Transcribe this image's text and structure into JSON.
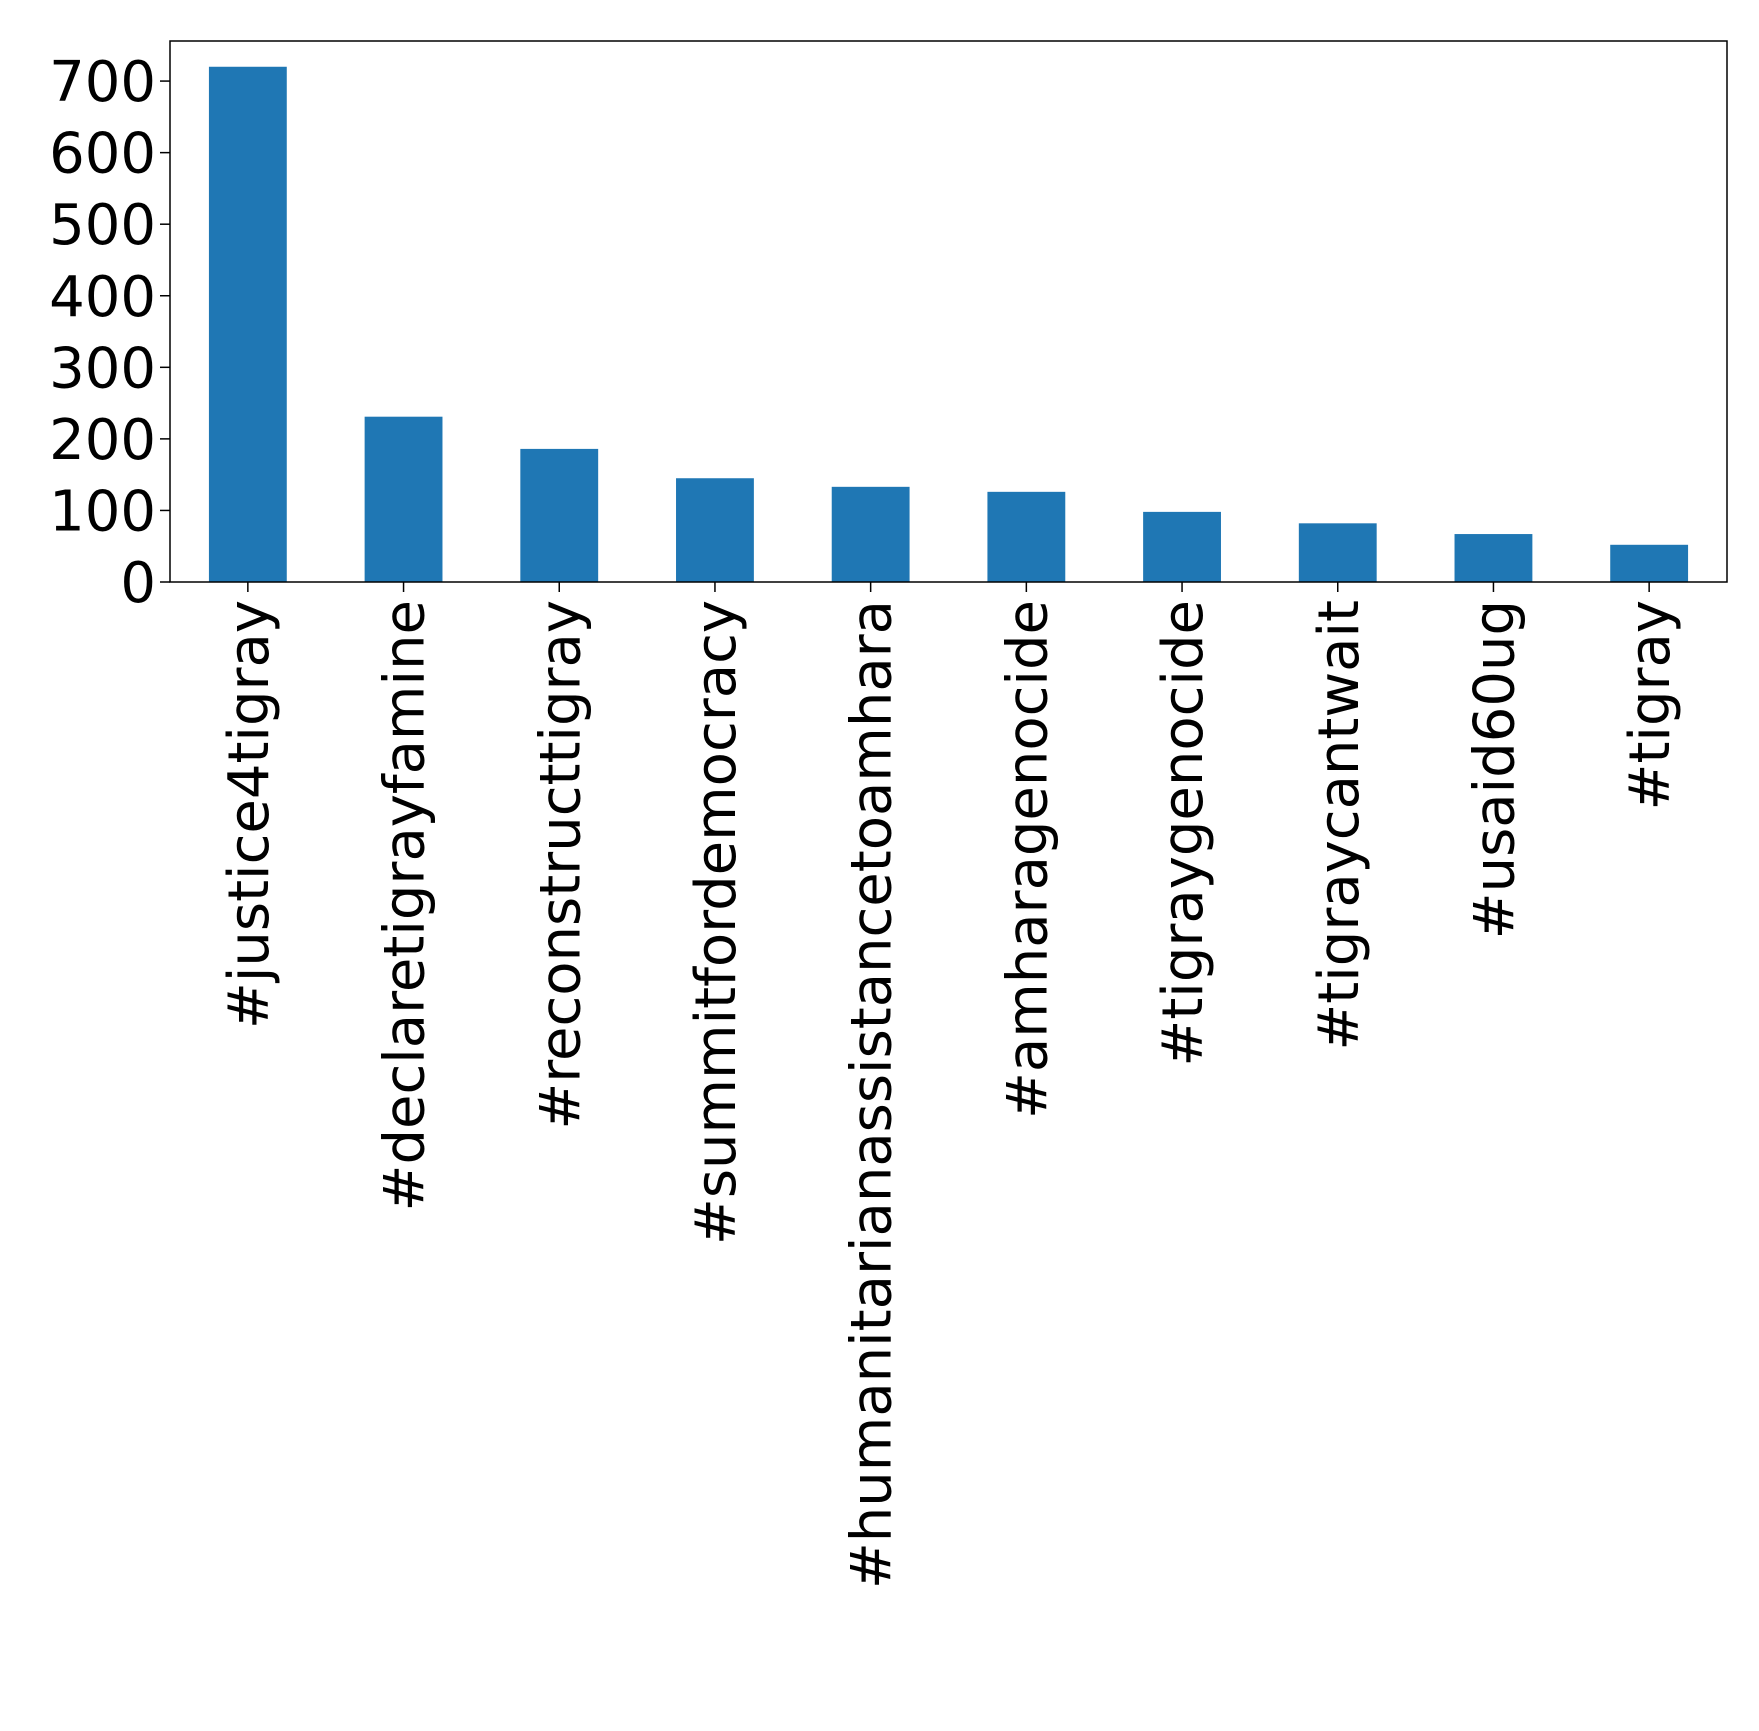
{
  "chart_data": {
    "type": "bar",
    "title": "",
    "xlabel": "",
    "ylabel": "",
    "categories": [
      "#justice4tigray",
      "#declaretigrayfamine",
      "#reconstructtigray",
      "#summitfordemocracy",
      "#humanitarianassistancetoamhara",
      "#amharagenocide",
      "#tigraygenocide",
      "#tigraycantwait",
      "#usaid60ug",
      "#tigray"
    ],
    "values": [
      720,
      231,
      186,
      145,
      133,
      126,
      98,
      82,
      67,
      52
    ],
    "ylim": [
      0,
      756
    ],
    "yticks": [
      0,
      100,
      200,
      300,
      400,
      500,
      600,
      700
    ],
    "grid": false,
    "legend": "none",
    "bar_color": "#1f77b4"
  }
}
